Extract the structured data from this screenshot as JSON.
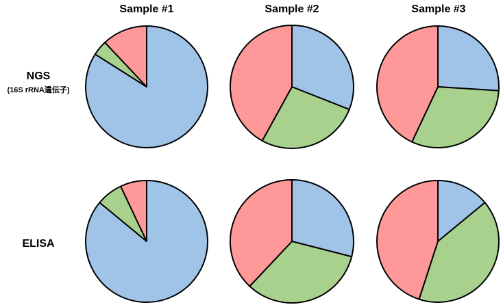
{
  "chart_data": {
    "type": "pie",
    "columns": [
      "Sample #1",
      "Sample #2",
      "Sample #3"
    ],
    "rows": [
      {
        "title": "NGS",
        "subtitle": "(16S rRNA遺伝子)",
        "title_color": "#000000"
      },
      {
        "title": "ELISA",
        "subtitle": "",
        "title_color": "#cc0000"
      }
    ],
    "series_colors": [
      "#9fc4e8",
      "#a9d18e",
      "#ff9999"
    ],
    "pies": [
      {
        "row": 0,
        "column": 0,
        "values": [
          84,
          4,
          12
        ]
      },
      {
        "row": 0,
        "column": 1,
        "values": [
          31,
          27,
          42
        ]
      },
      {
        "row": 0,
        "column": 2,
        "values": [
          26,
          31,
          43
        ]
      },
      {
        "row": 1,
        "column": 0,
        "values": [
          86,
          7,
          7
        ]
      },
      {
        "row": 1,
        "column": 1,
        "values": [
          29,
          33,
          38
        ]
      },
      {
        "row": 1,
        "column": 2,
        "values": [
          14,
          41,
          45
        ]
      }
    ]
  }
}
